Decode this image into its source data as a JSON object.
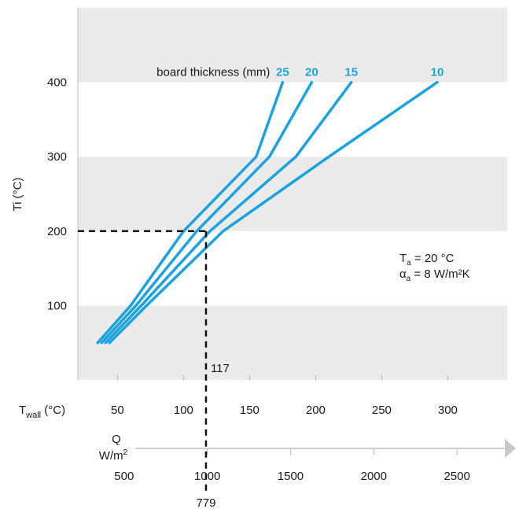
{
  "chart_data": {
    "type": "line",
    "title": "",
    "ylabel": "Ti (°C)",
    "xlabel_main": "T",
    "xlabel_main_sub": "wall",
    "xlabel_main_unit": " (°C)",
    "xlabel_q_line1": "Q",
    "xlabel_q_line2": "W/m",
    "xlabel_q_sup": "2",
    "ylim": [
      0,
      500
    ],
    "xlim": [
      20,
      345
    ],
    "y_ticks": [
      100,
      200,
      300,
      400
    ],
    "x_ticks": [
      50,
      100,
      150,
      200,
      250,
      300
    ],
    "q_ticks": [
      500,
      1000,
      1500,
      2000,
      2500
    ],
    "q_axis_map": {
      "q": [
        500,
        2500
      ],
      "twall": [
        55,
        307
      ]
    },
    "grid_bands": [
      [
        0,
        100
      ],
      [
        200,
        300
      ],
      [
        400,
        500
      ]
    ],
    "legend_title": "board thickness (mm)",
    "series": [
      {
        "name": "25",
        "x": [
          35,
          60,
          100,
          155,
          175
        ],
        "y": [
          50,
          100,
          200,
          300,
          400
        ]
      },
      {
        "name": "20",
        "x": [
          38,
          64,
          110,
          165,
          197
        ],
        "y": [
          50,
          100,
          200,
          300,
          400
        ]
      },
      {
        "name": "15",
        "x": [
          41,
          68,
          120,
          185,
          227
        ],
        "y": [
          50,
          100,
          200,
          300,
          400
        ]
      },
      {
        "name": "10",
        "x": [
          44,
          72,
          130,
          210,
          292
        ],
        "y": [
          50,
          100,
          200,
          300,
          400
        ]
      }
    ],
    "line_color": "#1ba3e0",
    "example": {
      "ti": 200,
      "twall": 117,
      "twall_label": "117",
      "q_label": "779"
    },
    "annotation": {
      "ta_symbol": "T",
      "ta_sub": "a",
      "ta_text": " = 20 °C",
      "alpha_symbol": "α",
      "alpha_sub": "a",
      "alpha_text": " = 8 W/m²K"
    }
  }
}
